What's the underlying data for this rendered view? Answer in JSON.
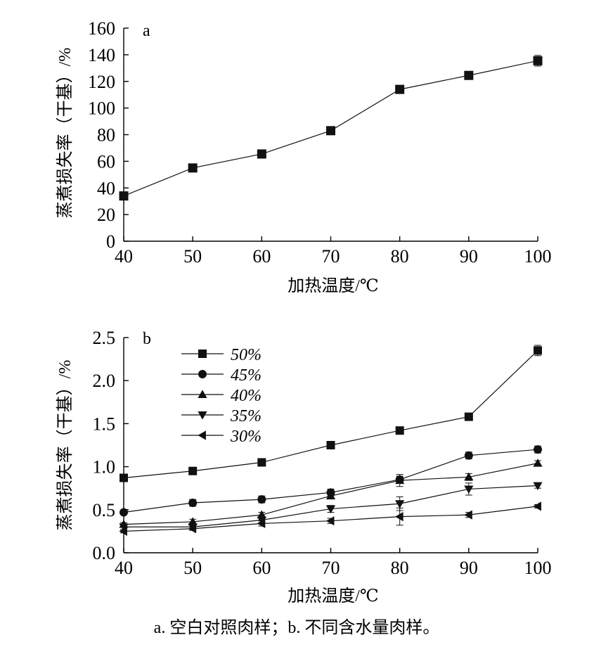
{
  "chart_data": [
    {
      "type": "line",
      "panel_label": "a",
      "xlabel": "加热温度/℃",
      "ylabel": "蒸煮损失率（干基）/%",
      "x": [
        40,
        50,
        60,
        70,
        80,
        90,
        100
      ],
      "xlim": [
        40,
        100
      ],
      "xticks": [
        "40",
        "50",
        "60",
        "70",
        "80",
        "90",
        "100"
      ],
      "ylim": [
        0,
        160
      ],
      "yticks": [
        "0",
        "20",
        "40",
        "60",
        "80",
        "100",
        "120",
        "140",
        "160"
      ],
      "grid": false,
      "series": [
        {
          "marker": "square",
          "values": [
            34,
            55,
            65.5,
            83,
            114,
            124.5,
            135.5
          ],
          "errors": [
            3,
            2,
            3,
            2,
            2,
            3,
            4
          ]
        }
      ]
    },
    {
      "type": "line",
      "panel_label": "b",
      "xlabel": "加热温度/℃",
      "ylabel": "蒸煮损失率（干基）/%",
      "x": [
        40,
        50,
        60,
        70,
        80,
        90,
        100
      ],
      "xlim": [
        40,
        100
      ],
      "xticks": [
        "40",
        "50",
        "60",
        "70",
        "80",
        "90",
        "100"
      ],
      "ylim": [
        0,
        2.5
      ],
      "yticks": [
        "0.0",
        "0.5",
        "1.0",
        "1.5",
        "2.0",
        "2.5"
      ],
      "grid": false,
      "legend_position": "top-left",
      "series": [
        {
          "name": "50%",
          "marker": "square",
          "values": [
            0.87,
            0.95,
            1.05,
            1.25,
            1.42,
            1.58,
            2.35
          ],
          "errors": [
            0.02,
            0.02,
            0.03,
            0.03,
            0.04,
            0.03,
            0.06
          ]
        },
        {
          "name": "45%",
          "marker": "circle",
          "values": [
            0.47,
            0.58,
            0.62,
            0.7,
            0.85,
            1.13,
            1.2
          ],
          "errors": [
            0.02,
            0.04,
            0.04,
            0.04,
            0.04,
            0.04,
            0.04
          ]
        },
        {
          "name": "40%",
          "marker": "triangle-up",
          "values": [
            0.33,
            0.36,
            0.44,
            0.66,
            0.84,
            0.88,
            1.04
          ],
          "errors": [
            0.02,
            0.03,
            0.03,
            0.03,
            0.07,
            0.04,
            0.03
          ]
        },
        {
          "name": "35%",
          "marker": "triangle-down",
          "values": [
            0.3,
            0.3,
            0.38,
            0.51,
            0.57,
            0.74,
            0.78
          ],
          "errors": [
            0.03,
            0.03,
            0.03,
            0.04,
            0.08,
            0.07,
            0.03
          ]
        },
        {
          "name": "30%",
          "marker": "triangle-left",
          "values": [
            0.25,
            0.28,
            0.34,
            0.37,
            0.42,
            0.44,
            0.54
          ],
          "errors": [
            0.02,
            0.02,
            0.03,
            0.03,
            0.1,
            0.03,
            0.02
          ]
        }
      ]
    }
  ],
  "caption": "a. 空白对照肉样；b. 不同含水量肉样。"
}
